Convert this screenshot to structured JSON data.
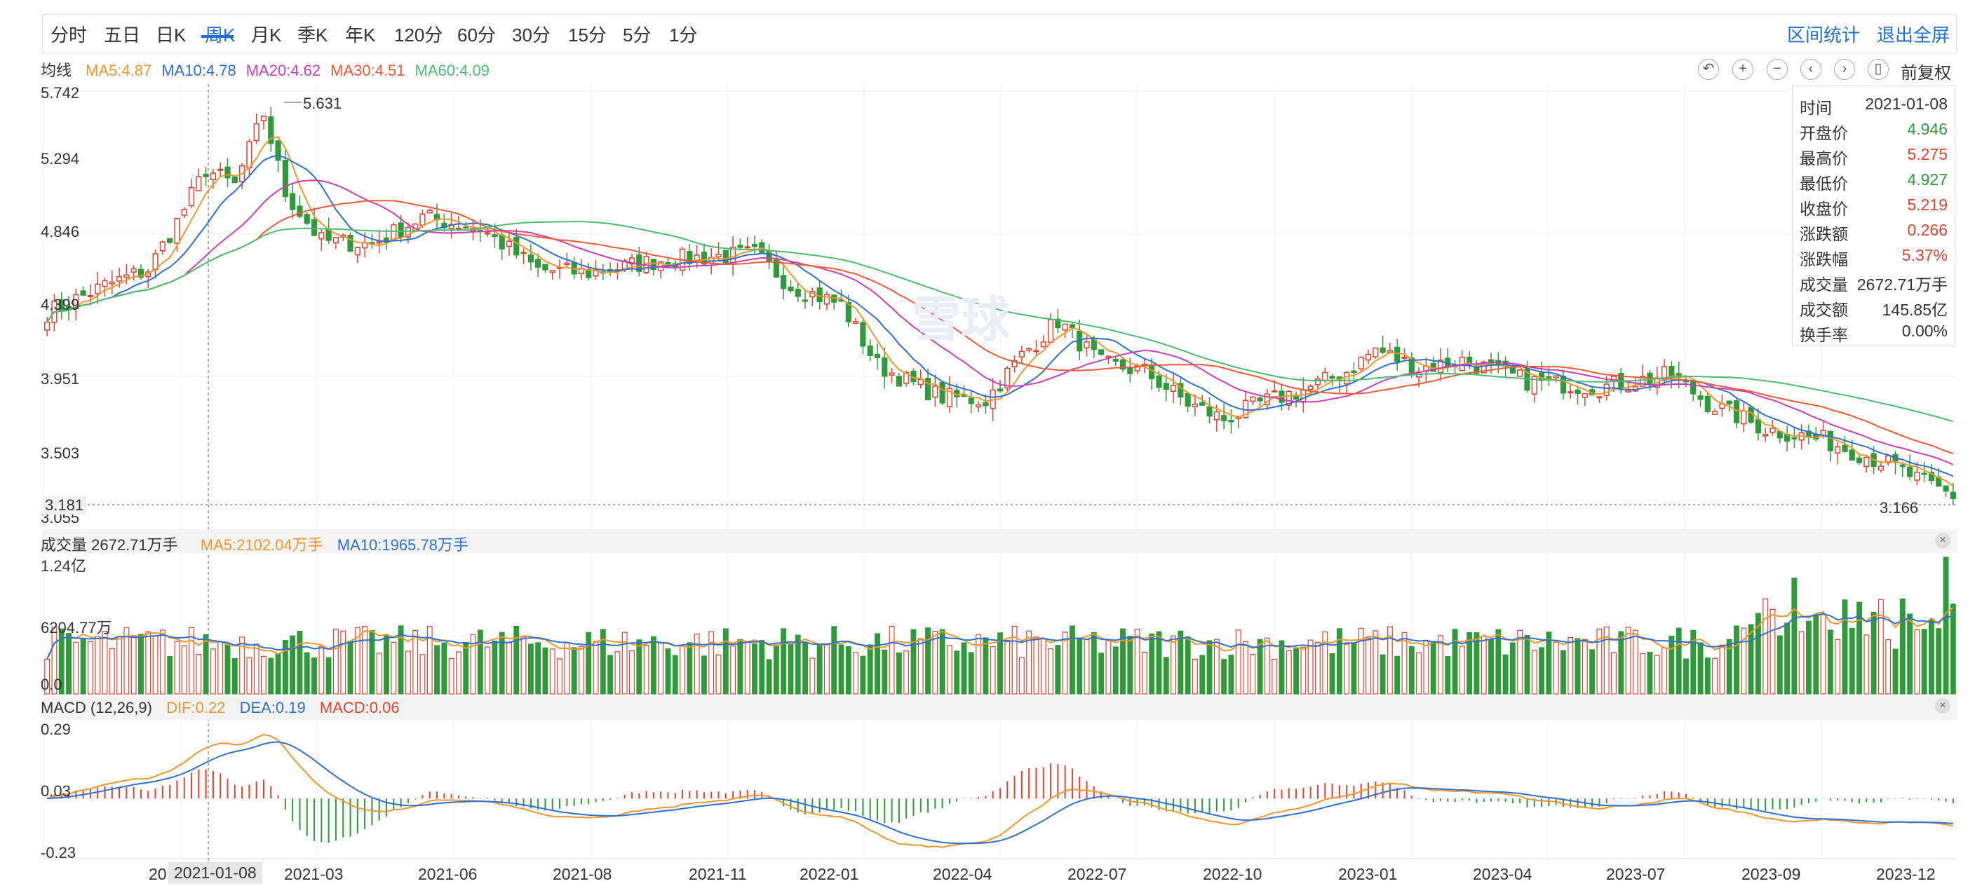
{
  "tabs": [
    {
      "label": "分时"
    },
    {
      "label": "五日"
    },
    {
      "label": "日K"
    },
    {
      "label": "周K",
      "active": true
    },
    {
      "label": "月K"
    },
    {
      "label": "季K"
    },
    {
      "label": "年K"
    },
    {
      "label": "120分"
    },
    {
      "label": "60分"
    },
    {
      "label": "30分"
    },
    {
      "label": "15分"
    },
    {
      "label": "5分"
    },
    {
      "label": "1分"
    }
  ],
  "header_actions": {
    "range_stats": "区间统计",
    "exit_fullscreen": "退出全屏"
  },
  "ma_legend": {
    "title": "均线",
    "items": [
      {
        "text": "MA5:4.87",
        "color": "#f0962e"
      },
      {
        "text": "MA10:4.78",
        "color": "#2f6fd0"
      },
      {
        "text": "MA20:4.62",
        "color": "#c93fb4"
      },
      {
        "text": "MA30:4.51",
        "color": "#ee5a35"
      },
      {
        "text": "MA60:4.09",
        "color": "#4cbc70"
      }
    ]
  },
  "toolbar": {
    "icons": [
      "undo-icon",
      "zoom-in-icon",
      "zoom-out-icon",
      "left-icon",
      "right-icon",
      "battery-icon"
    ],
    "adjust_label": "前复权"
  },
  "info": {
    "rows": [
      {
        "k": "时间",
        "v": "2021-01-08",
        "color": "#333333"
      },
      {
        "k": "开盘价",
        "v": "4.946",
        "color": "#2e9a3a"
      },
      {
        "k": "最高价",
        "v": "5.275",
        "color": "#e2422f"
      },
      {
        "k": "最低价",
        "v": "4.927",
        "color": "#2e9a3a"
      },
      {
        "k": "收盘价",
        "v": "5.219",
        "color": "#e2422f"
      },
      {
        "k": "涨跌额",
        "v": "0.266",
        "color": "#e2422f"
      },
      {
        "k": "涨跌幅",
        "v": "5.37%",
        "color": "#e2422f"
      },
      {
        "k": "成交量",
        "v": "2672.71万手",
        "color": "#333333"
      },
      {
        "k": "成交额",
        "v": "145.85亿",
        "color": "#333333"
      },
      {
        "k": "换手率",
        "v": "0.00%",
        "color": "#333333"
      }
    ]
  },
  "price_axis": {
    "labels": [
      "5.742",
      "5.294",
      "4.846",
      "4.399",
      "3.951",
      "3.503",
      "3.055"
    ],
    "current": "3.181",
    "high_mark": "5.631",
    "low_mark": "3.166"
  },
  "volume_legend": {
    "title": "成交量 2672.71万手",
    "ma5": "MA5:2102.04万手",
    "ma10": "MA10:1965.78万手"
  },
  "volume_axis": {
    "labels": [
      "1.24亿",
      "6204.77万",
      "0.0"
    ]
  },
  "macd_legend": {
    "title": "MACD (12,26,9)",
    "dif": "DIF:0.22",
    "dea": "DEA:0.19",
    "macd": "MACD:0.06"
  },
  "macd_axis": {
    "labels": [
      "0.29",
      "0.03",
      "-0.23"
    ]
  },
  "x_axis": {
    "labels": [
      "20",
      "2021-03",
      "2021-06",
      "2021-08",
      "2021-11",
      "2022-01",
      "2022-04",
      "2022-07",
      "2022-10",
      "2023-01",
      "2023-04",
      "2023-07",
      "2023-09",
      "2023-12"
    ],
    "crosshair_label": "2021-01-08"
  },
  "watermark": "雪球",
  "colors": {
    "up": "#e2422f",
    "down": "#2e9a3a",
    "grid": "#eeeeee"
  },
  "chart_data": {
    "type": "candlestick",
    "period": "weekly",
    "price_range": [
      3.055,
      5.742
    ],
    "close_anchors": [
      [
        0,
        4.35
      ],
      [
        8,
        4.52
      ],
      [
        14,
        4.62
      ],
      [
        18,
        4.92
      ],
      [
        22,
        5.25
      ],
      [
        26,
        5.15
      ],
      [
        30,
        5.6
      ],
      [
        33,
        5.1
      ],
      [
        38,
        4.8
      ],
      [
        45,
        4.78
      ],
      [
        52,
        4.95
      ],
      [
        60,
        4.88
      ],
      [
        68,
        4.62
      ],
      [
        75,
        4.6
      ],
      [
        85,
        4.68
      ],
      [
        98,
        4.72
      ],
      [
        103,
        4.52
      ],
      [
        110,
        4.4
      ],
      [
        115,
        4.02
      ],
      [
        120,
        3.9
      ],
      [
        124,
        3.82
      ],
      [
        130,
        3.8
      ],
      [
        135,
        4.08
      ],
      [
        140,
        4.3
      ],
      [
        146,
        4.03
      ],
      [
        152,
        3.98
      ],
      [
        158,
        3.78
      ],
      [
        163,
        3.68
      ],
      [
        168,
        3.78
      ],
      [
        175,
        3.88
      ],
      [
        180,
        3.98
      ],
      [
        184,
        4.12
      ],
      [
        190,
        4.0
      ],
      [
        196,
        4.05
      ],
      [
        205,
        3.92
      ],
      [
        215,
        3.88
      ],
      [
        225,
        3.96
      ],
      [
        230,
        3.78
      ],
      [
        238,
        3.62
      ],
      [
        246,
        3.55
      ],
      [
        255,
        3.4
      ],
      [
        260,
        3.28
      ],
      [
        264,
        3.2
      ]
    ],
    "n_weeks": 265,
    "volume_max_wan": 12400,
    "macd_range": [
      -0.23,
      0.29
    ]
  }
}
